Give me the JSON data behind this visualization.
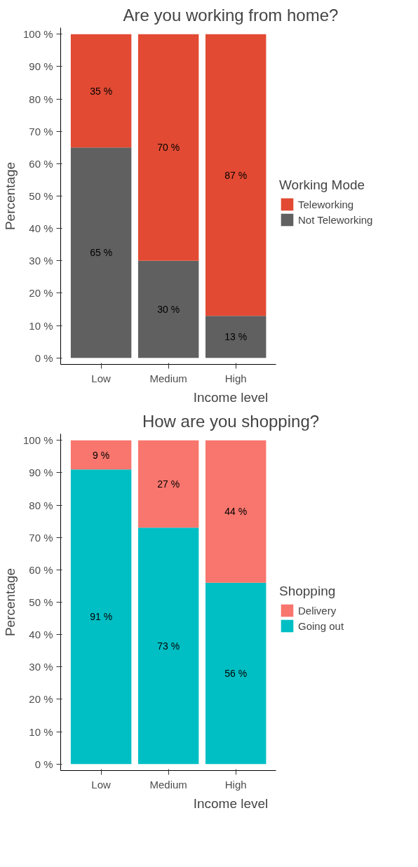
{
  "chart_data": [
    {
      "type": "bar",
      "title": "Are you working from home?",
      "xlabel": "Income level",
      "ylabel": "Percentage",
      "legend_title": "Working Mode",
      "categories": [
        "Low",
        "Medium",
        "High"
      ],
      "stacked": true,
      "legend": "right",
      "grid": false,
      "ylim": [
        -2,
        102
      ],
      "yticks": [
        {
          "value": 0,
          "label": "0 %"
        },
        {
          "value": 10,
          "label": "10 %"
        },
        {
          "value": 20,
          "label": "20 %"
        },
        {
          "value": 30,
          "label": "30 %"
        },
        {
          "value": 40,
          "label": "40 %"
        },
        {
          "value": 50,
          "label": "50 %"
        },
        {
          "value": 60,
          "label": "60 %"
        },
        {
          "value": 70,
          "label": "70 %"
        },
        {
          "value": 80,
          "label": "80 %"
        },
        {
          "value": 90,
          "label": "90 %"
        },
        {
          "value": 100,
          "label": "100 %"
        }
      ],
      "series": [
        {
          "name": "Not Teleworking",
          "color": "#606060",
          "values": [
            65,
            30,
            13
          ],
          "value_labels": [
            "65 %",
            "30 %",
            "13 %"
          ]
        },
        {
          "name": "Teleworking",
          "color": "#e24a33",
          "values": [
            35,
            70,
            87
          ],
          "value_labels": [
            "35 %",
            "70 %",
            "87 %"
          ]
        }
      ]
    },
    {
      "type": "bar",
      "title": "How are you shopping?",
      "xlabel": "Income level",
      "ylabel": "Percentage",
      "legend_title": "Shopping",
      "categories": [
        "Low",
        "Medium",
        "High"
      ],
      "stacked": true,
      "legend": "right",
      "grid": false,
      "ylim": [
        -2,
        102
      ],
      "yticks": [
        {
          "value": 0,
          "label": "0 %"
        },
        {
          "value": 10,
          "label": "10 %"
        },
        {
          "value": 20,
          "label": "20 %"
        },
        {
          "value": 30,
          "label": "30 %"
        },
        {
          "value": 40,
          "label": "40 %"
        },
        {
          "value": 50,
          "label": "50 %"
        },
        {
          "value": 60,
          "label": "60 %"
        },
        {
          "value": 70,
          "label": "70 %"
        },
        {
          "value": 80,
          "label": "80 %"
        },
        {
          "value": 90,
          "label": "90 %"
        },
        {
          "value": 100,
          "label": "100 %"
        }
      ],
      "series": [
        {
          "name": "Going out",
          "color": "#00bfc4",
          "values": [
            91,
            73,
            56
          ],
          "value_labels": [
            "91 %",
            "73 %",
            "56 %"
          ]
        },
        {
          "name": "Delivery",
          "color": "#f8766d",
          "values": [
            9,
            27,
            44
          ],
          "value_labels": [
            "9 %",
            "27 %",
            "44 %"
          ]
        }
      ]
    }
  ]
}
